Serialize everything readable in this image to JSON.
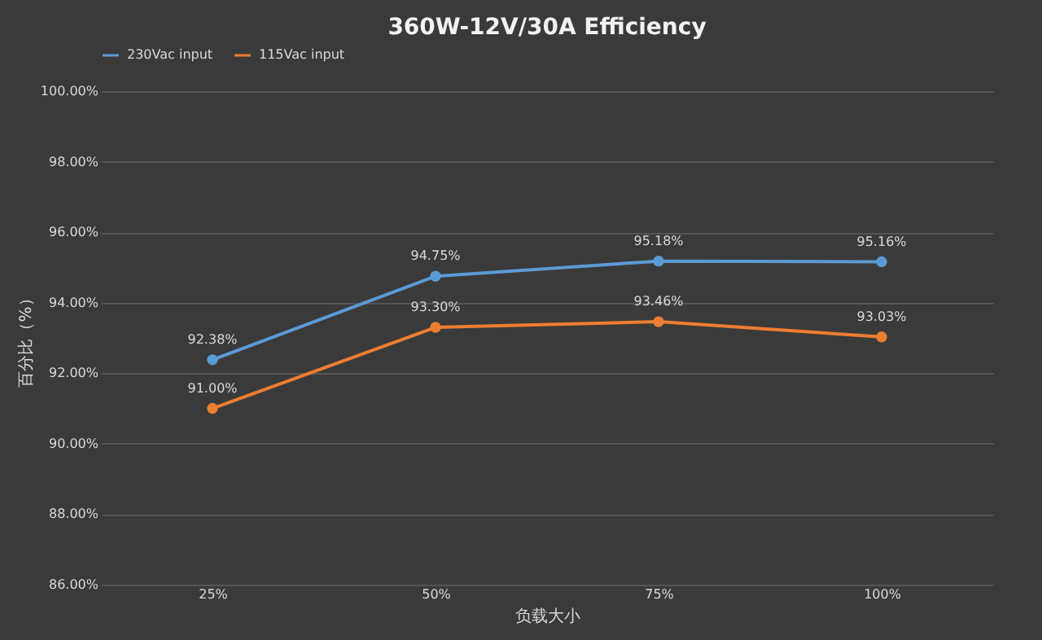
{
  "chart_data": {
    "type": "line",
    "title": "360W-12V/30A Efficiency",
    "xlabel": "负载大小",
    "ylabel": "百分比（%）",
    "categories": [
      "25%",
      "50%",
      "75%",
      "100%"
    ],
    "series": [
      {
        "name": "230Vac input",
        "color": "#5b9bd5",
        "values": [
          92.38,
          94.75,
          95.18,
          95.16
        ],
        "value_labels": [
          "92.38%",
          "94.75%",
          "95.18%",
          "95.16%"
        ]
      },
      {
        "name": "115Vac input",
        "color": "#ed7d31",
        "values": [
          91.0,
          93.3,
          93.46,
          93.03
        ],
        "value_labels": [
          "91.00%",
          "93.30%",
          "93.46%",
          "93.03%"
        ]
      }
    ],
    "ylim": [
      86,
      100
    ],
    "yticks": [
      {
        "value": 86,
        "label": "86.00%"
      },
      {
        "value": 88,
        "label": "88.00%"
      },
      {
        "value": 90,
        "label": "90.00%"
      },
      {
        "value": 92,
        "label": "92.00%"
      },
      {
        "value": 94,
        "label": "94.00%"
      },
      {
        "value": 96,
        "label": "96.00%"
      },
      {
        "value": 98,
        "label": "98.00%"
      },
      {
        "value": 100,
        "label": "100.00%"
      }
    ],
    "grid": "y",
    "legend": "top",
    "marker": "circle",
    "line_style": "solid"
  }
}
